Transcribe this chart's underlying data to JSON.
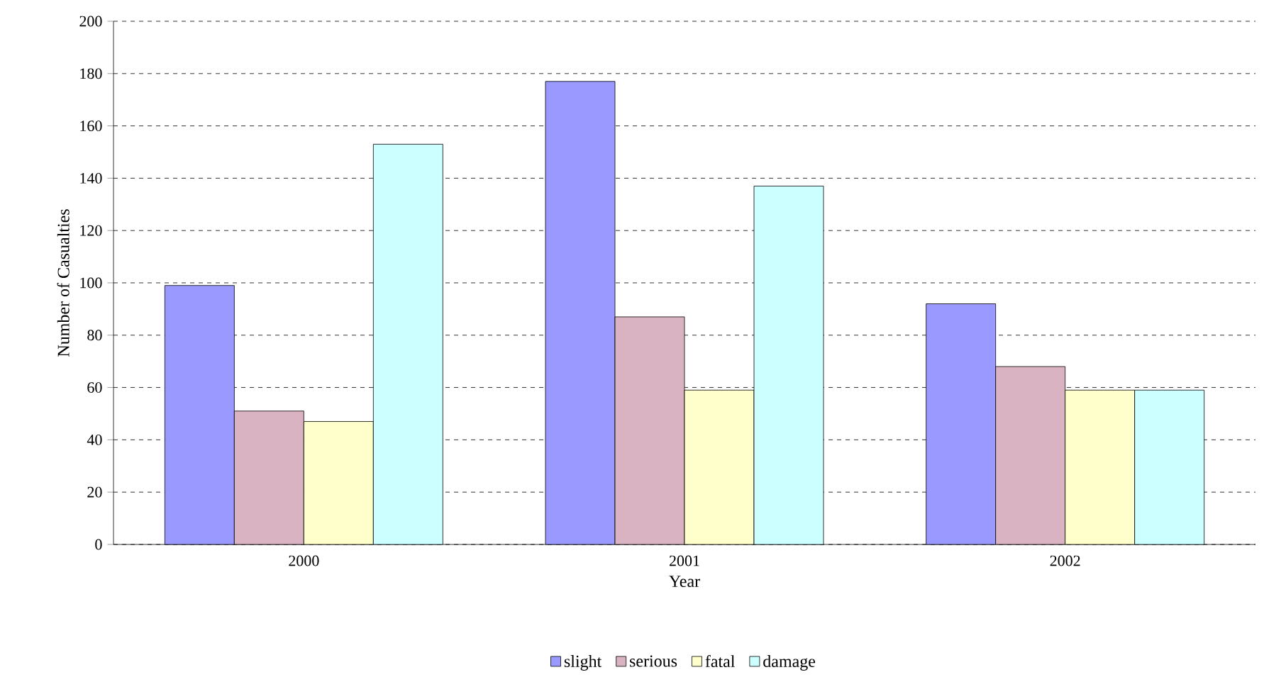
{
  "chart_data": {
    "type": "bar",
    "xlabel": "Year",
    "ylabel": "Number of Casualties",
    "categories": [
      "2000",
      "2001",
      "2002"
    ],
    "series": [
      {
        "name": "slight",
        "color": "#9999ff",
        "values": [
          99,
          177,
          92
        ]
      },
      {
        "name": "serious",
        "color": "#d9b3c2",
        "values": [
          51,
          87,
          68
        ]
      },
      {
        "name": "fatal",
        "color": "#ffffcc",
        "values": [
          47,
          59,
          59
        ]
      },
      {
        "name": "damage",
        "color": "#ccffff",
        "values": [
          153,
          137,
          59
        ]
      }
    ],
    "ylim": [
      0,
      200
    ],
    "yticks": [
      0,
      20,
      40,
      60,
      80,
      100,
      120,
      140,
      160,
      180,
      200
    ],
    "grid": "y",
    "legend": "bottom"
  }
}
